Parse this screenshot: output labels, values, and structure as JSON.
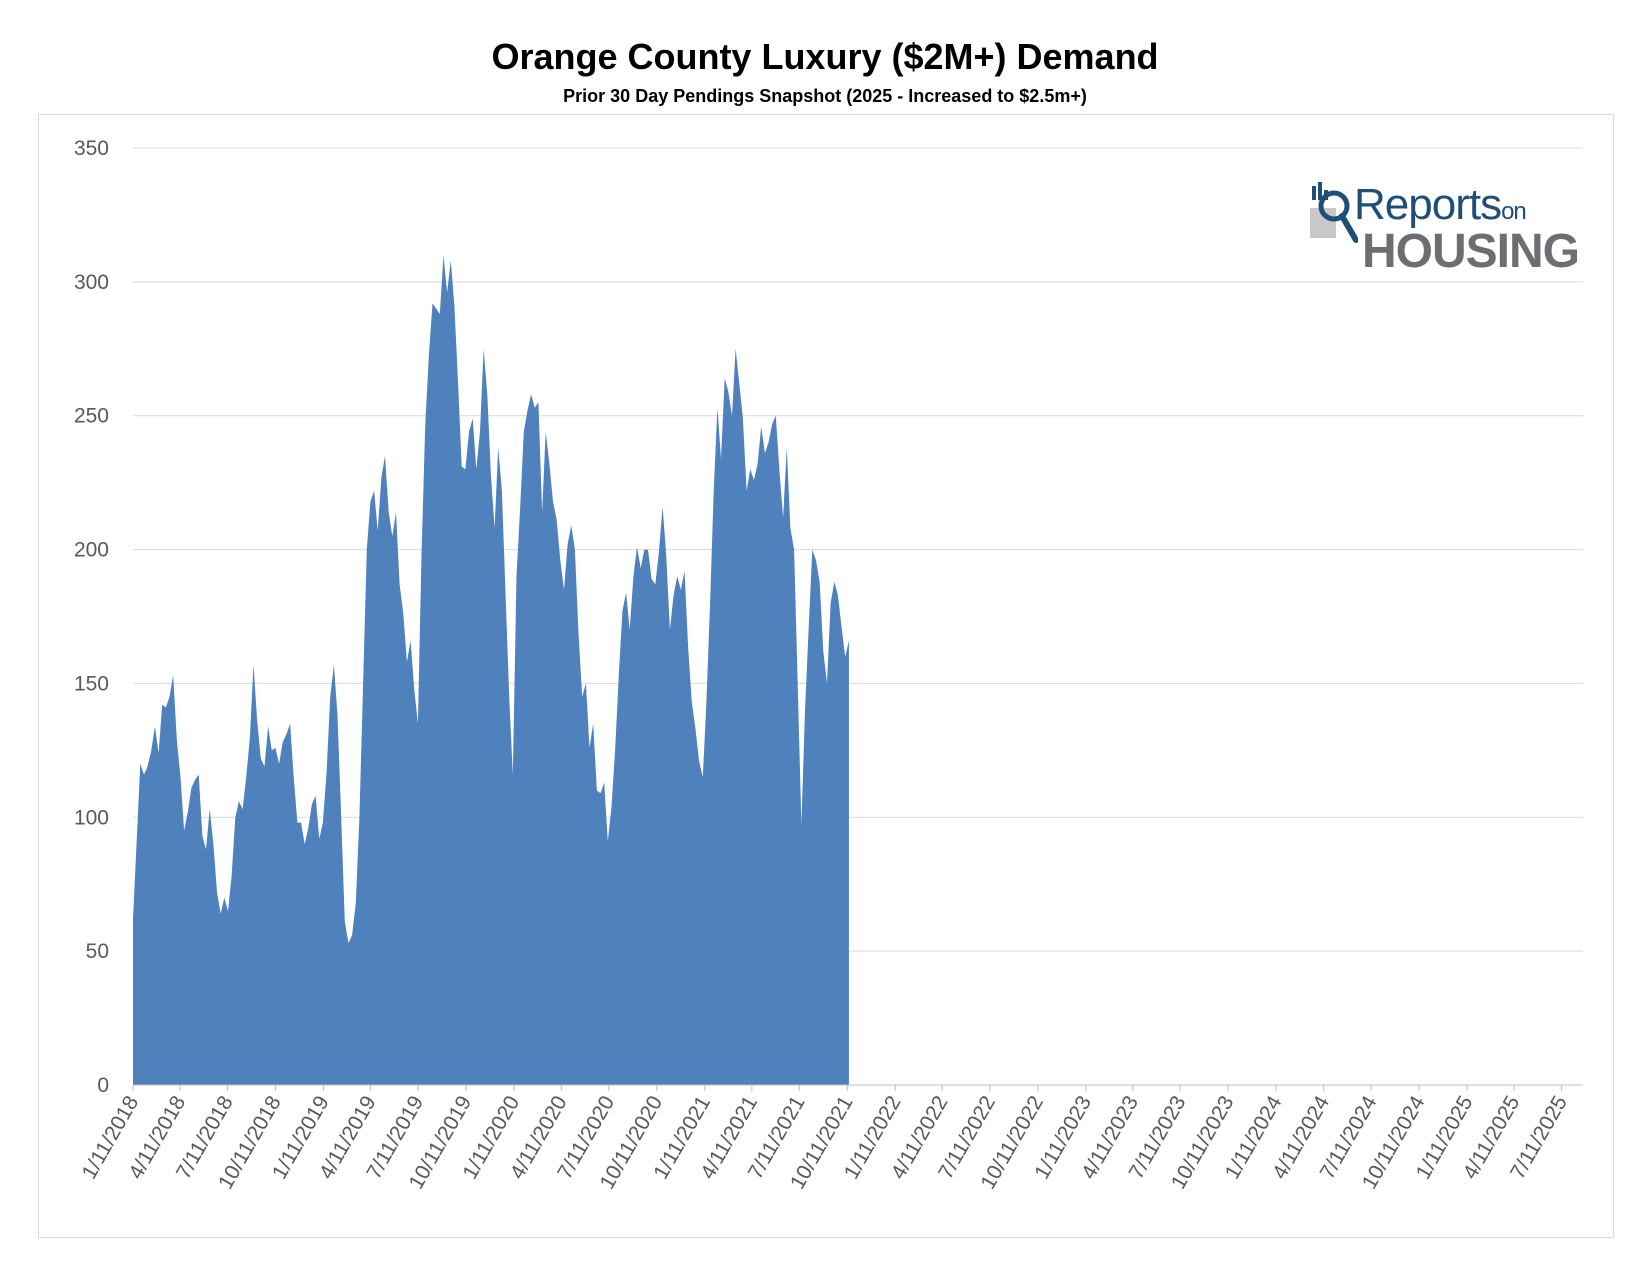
{
  "chart_data": {
    "type": "area",
    "title": "Orange County Luxury ($2M+) Demand",
    "subtitle": "Prior 30 Day Pendings Snapshot (2025 - Increased to $2.5m+)",
    "xlabel": "",
    "ylabel": "",
    "ylim": [
      0,
      350
    ],
    "yticks": [
      0,
      50,
      100,
      150,
      200,
      250,
      300,
      350
    ],
    "grid": true,
    "color": "#4f81bd",
    "xlim": [
      "1/11/2018",
      "8/21/2025"
    ],
    "xtick_labels": [
      "1/11/2018",
      "4/11/2018",
      "7/11/2018",
      "10/11/2018",
      "1/11/2019",
      "4/11/2019",
      "7/11/2019",
      "10/11/2019",
      "1/11/2020",
      "4/11/2020",
      "7/11/2020",
      "10/11/2020",
      "1/11/2021",
      "4/11/2021",
      "7/11/2021",
      "10/11/2021",
      "1/11/2022",
      "4/11/2022",
      "7/11/2022",
      "10/11/2022",
      "1/11/2023",
      "4/11/2023",
      "7/11/2023",
      "10/11/2023",
      "1/11/2024",
      "4/11/2024",
      "7/11/2024",
      "10/11/2024",
      "1/11/2025",
      "4/11/2025",
      "7/11/2025"
    ],
    "series": [
      {
        "values": [
          [
            "2018-01-11",
            62
          ],
          [
            "2018-01-25",
            120
          ],
          [
            "2018-02-01",
            116
          ],
          [
            "2018-02-08",
            119
          ],
          [
            "2018-02-15",
            125
          ],
          [
            "2018-02-22",
            134
          ],
          [
            "2018-03-01",
            124
          ],
          [
            "2018-03-08",
            142
          ],
          [
            "2018-03-15",
            141
          ],
          [
            "2018-03-22",
            145
          ],
          [
            "2018-03-29",
            153
          ],
          [
            "2018-04-05",
            129
          ],
          [
            "2018-04-12",
            115
          ],
          [
            "2018-04-19",
            95
          ],
          [
            "2018-04-26",
            102
          ],
          [
            "2018-05-03",
            111
          ],
          [
            "2018-05-10",
            114
          ],
          [
            "2018-05-17",
            116
          ],
          [
            "2018-05-24",
            93
          ],
          [
            "2018-05-31",
            88
          ],
          [
            "2018-06-07",
            103
          ],
          [
            "2018-06-14",
            90
          ],
          [
            "2018-06-21",
            72
          ],
          [
            "2018-06-28",
            64
          ],
          [
            "2018-07-05",
            70
          ],
          [
            "2018-07-12",
            65
          ],
          [
            "2018-07-19",
            78
          ],
          [
            "2018-07-26",
            100
          ],
          [
            "2018-08-02",
            106
          ],
          [
            "2018-08-09",
            103
          ],
          [
            "2018-08-16",
            115
          ],
          [
            "2018-08-23",
            130
          ],
          [
            "2018-08-30",
            157
          ],
          [
            "2018-09-06",
            136
          ],
          [
            "2018-09-13",
            122
          ],
          [
            "2018-09-20",
            119
          ],
          [
            "2018-09-27",
            134
          ],
          [
            "2018-10-04",
            125
          ],
          [
            "2018-10-11",
            126
          ],
          [
            "2018-10-18",
            120
          ],
          [
            "2018-10-25",
            128
          ],
          [
            "2018-11-01",
            131
          ],
          [
            "2018-11-08",
            135
          ],
          [
            "2018-11-15",
            115
          ],
          [
            "2018-11-22",
            98
          ],
          [
            "2018-11-29",
            98
          ],
          [
            "2018-12-06",
            90
          ],
          [
            "2018-12-13",
            96
          ],
          [
            "2018-12-20",
            105
          ],
          [
            "2018-12-27",
            108
          ],
          [
            "2019-01-03",
            92
          ],
          [
            "2019-01-10",
            98
          ],
          [
            "2019-01-17",
            117
          ],
          [
            "2019-01-24",
            145
          ],
          [
            "2019-01-31",
            157
          ],
          [
            "2019-02-07",
            138
          ],
          [
            "2019-02-14",
            100
          ],
          [
            "2019-02-21",
            61
          ],
          [
            "2019-02-28",
            53
          ],
          [
            "2019-03-07",
            56
          ],
          [
            "2019-03-14",
            68
          ],
          [
            "2019-03-21",
            100
          ],
          [
            "2019-03-28",
            150
          ],
          [
            "2019-04-04",
            200
          ],
          [
            "2019-04-11",
            218
          ],
          [
            "2019-04-18",
            222
          ],
          [
            "2019-04-25",
            207
          ],
          [
            "2019-05-02",
            227
          ],
          [
            "2019-05-09",
            235
          ],
          [
            "2019-05-16",
            214
          ],
          [
            "2019-05-23",
            205
          ],
          [
            "2019-05-30",
            214
          ],
          [
            "2019-06-06",
            187
          ],
          [
            "2019-06-13",
            176
          ],
          [
            "2019-06-20",
            158
          ],
          [
            "2019-06-27",
            166
          ],
          [
            "2019-07-04",
            148
          ],
          [
            "2019-07-11",
            135
          ],
          [
            "2019-07-18",
            198
          ],
          [
            "2019-07-25",
            246
          ],
          [
            "2019-08-01",
            272
          ],
          [
            "2019-08-08",
            292
          ],
          [
            "2019-08-15",
            290
          ],
          [
            "2019-08-22",
            288
          ],
          [
            "2019-08-29",
            310
          ],
          [
            "2019-09-05",
            296
          ],
          [
            "2019-09-12",
            308
          ],
          [
            "2019-09-19",
            291
          ],
          [
            "2019-09-26",
            262
          ],
          [
            "2019-10-03",
            231
          ],
          [
            "2019-10-10",
            230
          ],
          [
            "2019-10-17",
            244
          ],
          [
            "2019-10-24",
            249
          ],
          [
            "2019-10-31",
            230
          ],
          [
            "2019-11-07",
            244
          ],
          [
            "2019-11-14",
            275
          ],
          [
            "2019-11-21",
            258
          ],
          [
            "2019-11-28",
            228
          ],
          [
            "2019-12-05",
            208
          ],
          [
            "2019-12-12",
            238
          ],
          [
            "2019-12-19",
            222
          ],
          [
            "2019-12-26",
            184
          ],
          [
            "2020-01-02",
            145
          ],
          [
            "2020-01-09",
            116
          ],
          [
            "2020-01-16",
            190
          ],
          [
            "2020-01-23",
            216
          ],
          [
            "2020-01-30",
            244
          ],
          [
            "2020-02-06",
            252
          ],
          [
            "2020-02-13",
            258
          ],
          [
            "2020-02-20",
            253
          ],
          [
            "2020-02-27",
            255
          ],
          [
            "2020-03-05",
            214
          ],
          [
            "2020-03-12",
            244
          ],
          [
            "2020-03-19",
            232
          ],
          [
            "2020-03-26",
            218
          ],
          [
            "2020-04-02",
            211
          ],
          [
            "2020-04-09",
            196
          ],
          [
            "2020-04-16",
            185
          ],
          [
            "2020-04-23",
            202
          ],
          [
            "2020-04-30",
            209
          ],
          [
            "2020-05-07",
            200
          ],
          [
            "2020-05-14",
            168
          ],
          [
            "2020-05-21",
            145
          ],
          [
            "2020-05-28",
            150
          ],
          [
            "2020-06-04",
            126
          ],
          [
            "2020-06-11",
            135
          ],
          [
            "2020-06-18",
            110
          ],
          [
            "2020-06-25",
            109
          ],
          [
            "2020-07-02",
            113
          ],
          [
            "2020-07-09",
            91
          ],
          [
            "2020-07-16",
            104
          ],
          [
            "2020-07-23",
            125
          ],
          [
            "2020-07-30",
            153
          ],
          [
            "2020-08-06",
            177
          ],
          [
            "2020-08-13",
            184
          ],
          [
            "2020-08-20",
            170
          ],
          [
            "2020-08-27",
            190
          ],
          [
            "2020-09-03",
            201
          ],
          [
            "2020-09-10",
            193
          ],
          [
            "2020-09-17",
            200
          ],
          [
            "2020-09-24",
            200
          ],
          [
            "2020-10-01",
            189
          ],
          [
            "2020-10-08",
            187
          ],
          [
            "2020-10-15",
            199
          ],
          [
            "2020-10-22",
            216
          ],
          [
            "2020-10-29",
            198
          ],
          [
            "2020-11-05",
            170
          ],
          [
            "2020-11-12",
            183
          ],
          [
            "2020-11-19",
            190
          ],
          [
            "2020-11-26",
            185
          ],
          [
            "2020-12-03",
            192
          ],
          [
            "2020-12-10",
            163
          ],
          [
            "2020-12-17",
            143
          ],
          [
            "2020-12-24",
            133
          ],
          [
            "2020-12-31",
            121
          ],
          [
            "2021-01-07",
            115
          ],
          [
            "2021-01-14",
            143
          ],
          [
            "2021-01-21",
            180
          ],
          [
            "2021-01-28",
            222
          ],
          [
            "2021-02-04",
            253
          ],
          [
            "2021-02-11",
            234
          ],
          [
            "2021-02-18",
            264
          ],
          [
            "2021-02-25",
            259
          ],
          [
            "2021-03-04",
            250
          ],
          [
            "2021-03-11",
            275
          ],
          [
            "2021-03-18",
            262
          ],
          [
            "2021-03-25",
            249
          ],
          [
            "2021-04-01",
            222
          ],
          [
            "2021-04-08",
            230
          ],
          [
            "2021-04-15",
            226
          ],
          [
            "2021-04-22",
            232
          ],
          [
            "2021-04-29",
            246
          ],
          [
            "2021-05-06",
            236
          ],
          [
            "2021-05-13",
            240
          ],
          [
            "2021-05-20",
            247
          ],
          [
            "2021-05-27",
            250
          ],
          [
            "2021-06-03",
            229
          ],
          [
            "2021-06-10",
            212
          ],
          [
            "2021-06-17",
            238
          ],
          [
            "2021-06-24",
            208
          ],
          [
            "2021-07-01",
            200
          ],
          [
            "2021-07-08",
            150
          ],
          [
            "2021-07-15",
            97
          ],
          [
            "2021-07-22",
            140
          ],
          [
            "2021-07-29",
            171
          ],
          [
            "2021-08-05",
            200
          ],
          [
            "2021-08-12",
            196
          ],
          [
            "2021-08-19",
            188
          ],
          [
            "2021-08-26",
            162
          ],
          [
            "2021-09-02",
            150
          ],
          [
            "2021-09-09",
            180
          ],
          [
            "2021-09-16",
            188
          ],
          [
            "2021-09-23",
            183
          ],
          [
            "2021-09-30",
            171
          ],
          [
            "2021-10-07",
            160
          ],
          [
            "2021-10-14",
            166
          ]
        ]
      }
    ]
  },
  "logo": {
    "line1": "Reports",
    "line1_suffix": "on",
    "line2": "HOUSING",
    "color_blue": "#1f4e79",
    "color_gray": "#6d6e71"
  }
}
